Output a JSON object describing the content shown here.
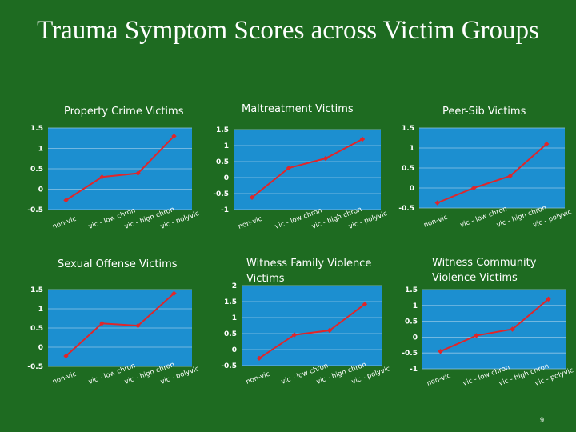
{
  "slide": {
    "title": "Trauma Symptom Scores across Victim Groups",
    "page_number": "9"
  },
  "colors": {
    "background": "#1e6b21",
    "plot_area": "#1c8fd0",
    "line": "#e0262a",
    "text": "#ffffff"
  },
  "chart_data": [
    {
      "type": "line",
      "title": "Property Crime Victims",
      "categories": [
        "non-vic",
        "vic - low chron",
        "vic - high chron",
        "vic - polyvic"
      ],
      "values": [
        -0.27,
        0.3,
        0.39,
        1.3
      ],
      "ylim": [
        -0.5,
        1.5
      ],
      "yticks": [
        "-0.5",
        "0",
        "0.5",
        "1",
        "1.5"
      ],
      "tick_values": [
        -0.5,
        0,
        0.5,
        1,
        1.5
      ],
      "grid": true,
      "legend": "none"
    },
    {
      "type": "line",
      "title": "Maltreatment Victims",
      "categories": [
        "non-vic",
        "vic - low chron",
        "vic - high chron",
        "vic - polyvic"
      ],
      "values": [
        -0.62,
        0.3,
        0.6,
        1.2
      ],
      "ylim": [
        -1,
        1.5
      ],
      "yticks": [
        "-1",
        "-0.5",
        "0",
        "0.5",
        "1",
        "1.5"
      ],
      "tick_values": [
        -1,
        -0.5,
        0,
        0.5,
        1,
        1.5
      ],
      "grid": true,
      "legend": "none"
    },
    {
      "type": "line",
      "title": "Peer-Sib Victims",
      "categories": [
        "non-vic",
        "vic - low chron",
        "vic - high chron",
        "vic - polyvic"
      ],
      "values": [
        -0.37,
        0.0,
        0.3,
        1.1
      ],
      "ylim": [
        -0.5,
        1.5
      ],
      "yticks": [
        "-0.5",
        "0",
        "0.5",
        "1",
        "1.5"
      ],
      "tick_values": [
        -0.5,
        0,
        0.5,
        1,
        1.5
      ],
      "grid": true,
      "legend": "none"
    },
    {
      "type": "line",
      "title": "Sexual Offense Victims",
      "categories": [
        "non-vic",
        "vic - low chron",
        "vic - high chron",
        "vic - polyvic"
      ],
      "values": [
        -0.23,
        0.62,
        0.56,
        1.4
      ],
      "ylim": [
        -0.5,
        1.5
      ],
      "yticks": [
        "-0.5",
        "0",
        "0.5",
        "1",
        "1.5"
      ],
      "tick_values": [
        -0.5,
        0,
        0.5,
        1,
        1.5
      ],
      "grid": true,
      "legend": "none"
    },
    {
      "type": "line",
      "title": "Witness Family Violence Victims",
      "categories": [
        "non-vic",
        "vic - low chron",
        "vic - high chron",
        "vic - polyvic"
      ],
      "values": [
        -0.27,
        0.46,
        0.6,
        1.42
      ],
      "ylim": [
        -0.5,
        2
      ],
      "yticks": [
        "-0.5",
        "0",
        "0.5",
        "1",
        "1.5",
        "2"
      ],
      "tick_values": [
        -0.5,
        0,
        0.5,
        1,
        1.5,
        2
      ],
      "grid": true,
      "legend": "none"
    },
    {
      "type": "line",
      "title": "Witness Community Violence Victims",
      "categories": [
        "non-vic",
        "vic - low chron",
        "vic - high chron",
        "vic - polyvic"
      ],
      "values": [
        -0.45,
        0.05,
        0.25,
        1.2
      ],
      "ylim": [
        -1,
        1.5
      ],
      "yticks": [
        "-1",
        "-0.5",
        "0",
        "0.5",
        "1",
        "1.5"
      ],
      "tick_values": [
        -1,
        -0.5,
        0,
        0.5,
        1,
        1.5
      ],
      "grid": true,
      "legend": "none"
    }
  ]
}
